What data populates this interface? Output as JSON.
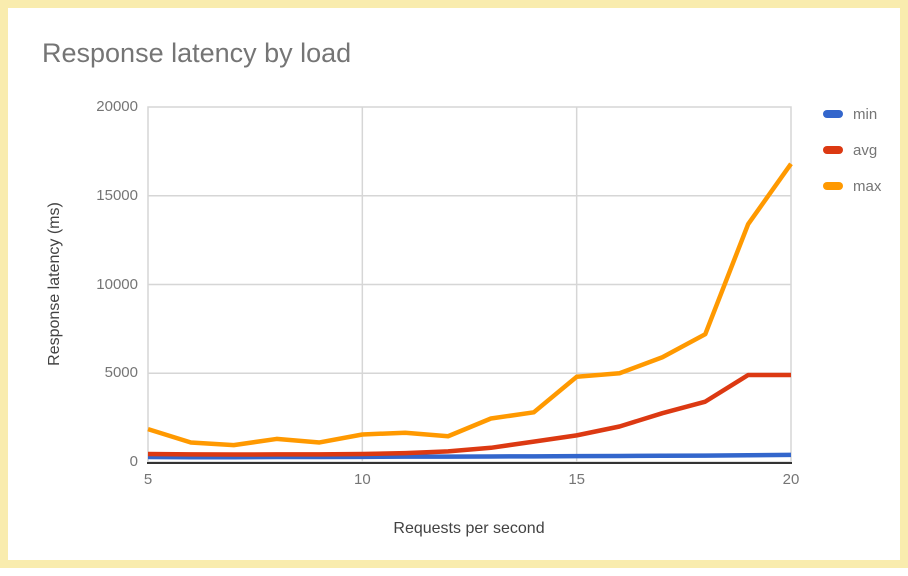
{
  "title": "Response latency by load",
  "chart_data": {
    "type": "line",
    "title": "Response latency by load",
    "xlabel": "Requests per second",
    "ylabel": "Response latency (ms)",
    "x": [
      5,
      6,
      7,
      8,
      9,
      10,
      11,
      12,
      13,
      14,
      15,
      16,
      17,
      18,
      19,
      20
    ],
    "series": [
      {
        "name": "min",
        "color": "#3366cc",
        "values": [
          280,
          270,
          270,
          280,
          280,
          290,
          300,
          300,
          310,
          320,
          330,
          340,
          350,
          360,
          380,
          400
        ]
      },
      {
        "name": "avg",
        "color": "#dc3912",
        "values": [
          450,
          430,
          420,
          430,
          430,
          450,
          500,
          600,
          800,
          1150,
          1500,
          2000,
          2750,
          3400,
          4900,
          4900
        ]
      },
      {
        "name": "max",
        "color": "#ff9900",
        "values": [
          1850,
          1100,
          950,
          1300,
          1100,
          1550,
          1650,
          1450,
          2450,
          2800,
          4800,
          5000,
          5900,
          7200,
          13400,
          16800
        ]
      }
    ],
    "xlim": [
      5,
      20
    ],
    "ylim": [
      0,
      20000
    ],
    "x_ticks": [
      5,
      10,
      15,
      20
    ],
    "y_ticks": [
      0,
      5000,
      10000,
      15000,
      20000
    ],
    "grid": true,
    "legend_position": "right"
  },
  "legend": {
    "items": [
      {
        "label": "min",
        "color": "#3366cc"
      },
      {
        "label": "avg",
        "color": "#dc3912"
      },
      {
        "label": "max",
        "color": "#ff9900"
      }
    ]
  },
  "colors": {
    "page_border": "#f9ecae",
    "background": "#ffffff",
    "gridline": "#d6d6d6",
    "axis_line": "#333333",
    "title_text": "#757575",
    "tick_text": "#757575",
    "axis_label_text": "#424242"
  }
}
